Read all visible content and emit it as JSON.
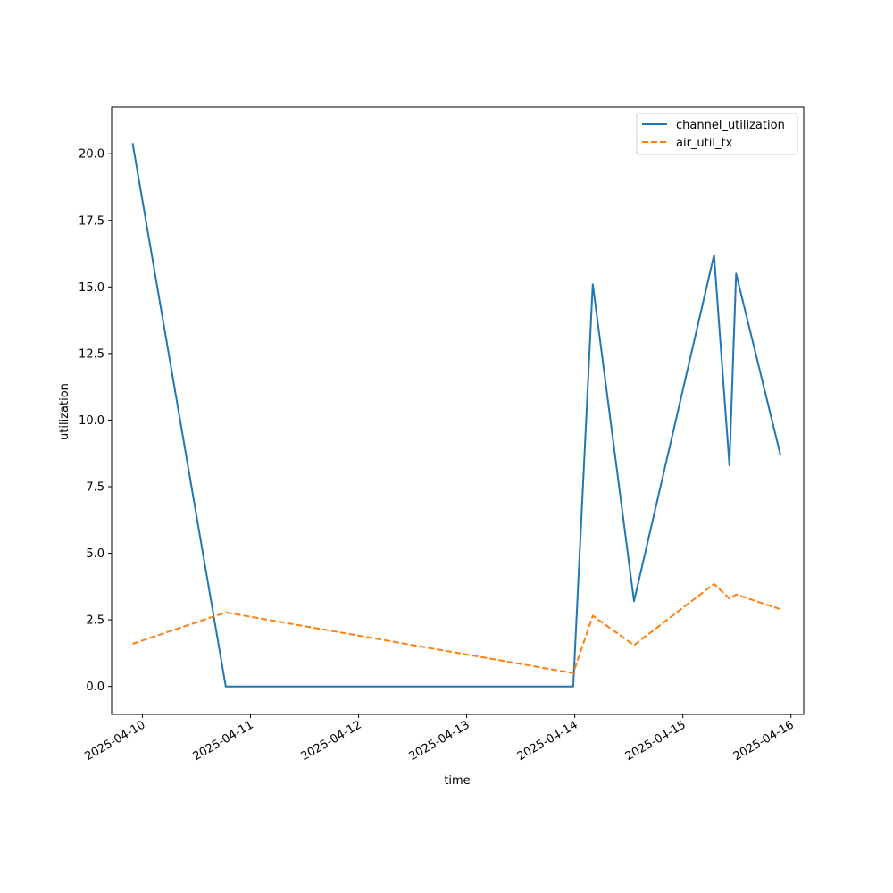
{
  "chart_data": {
    "type": "line",
    "xlabel": "time",
    "ylabel": "utilization",
    "x_ticks": [
      "2025-04-10",
      "2025-04-11",
      "2025-04-12",
      "2025-04-13",
      "2025-04-14",
      "2025-04-15",
      "2025-04-16"
    ],
    "y_ticks": [
      "0.0",
      "2.5",
      "5.0",
      "7.5",
      "10.0",
      "12.5",
      "15.0",
      "17.5",
      "20.0"
    ],
    "xlim": [
      "2025-04-09 17:10",
      "2025-04-16 02:50"
    ],
    "ylim": [
      -1.05,
      21.75
    ],
    "grid": false,
    "legend_position": "top-right",
    "series": [
      {
        "name": "channel_utilization",
        "color": "#1f77b4",
        "style": "solid",
        "x": [
          "2025-04-09 21:50",
          "2025-04-10 18:30",
          "2025-04-13 23:40",
          "2025-04-14 04:00",
          "2025-04-14 13:10",
          "2025-04-15 06:55",
          "2025-04-15 10:20",
          "2025-04-15 11:50",
          "2025-04-15 21:40"
        ],
        "values": [
          20.4,
          0.0,
          0.0,
          15.1,
          3.2,
          16.2,
          8.3,
          15.5,
          8.7
        ]
      },
      {
        "name": "air_util_tx",
        "color": "#ff7f0e",
        "style": "dashed",
        "x": [
          "2025-04-09 21:50",
          "2025-04-10 18:30",
          "2025-04-13 23:40",
          "2025-04-14 04:00",
          "2025-04-14 13:10",
          "2025-04-15 06:55",
          "2025-04-15 10:20",
          "2025-04-15 11:50",
          "2025-04-15 21:40"
        ],
        "values": [
          1.6,
          2.78,
          0.5,
          2.65,
          1.55,
          3.85,
          3.3,
          3.45,
          2.9
        ]
      }
    ]
  }
}
